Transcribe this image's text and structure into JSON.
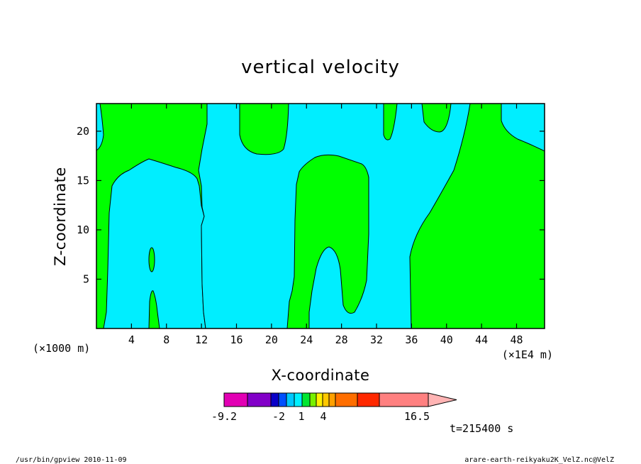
{
  "chart_data": {
    "type": "contour",
    "title": "vertical velocity",
    "xlabel": "X-coordinate",
    "ylabel": "Z-coordinate",
    "x_unit_left": "(×1000 m)",
    "x_unit_right": "(×1E4 m)",
    "xlim": [
      0,
      51.2
    ],
    "ylim": [
      0,
      22.8
    ],
    "x_ticks": [
      4,
      8,
      12,
      16,
      20,
      24,
      28,
      32,
      36,
      40,
      44,
      48
    ],
    "y_ticks": [
      5,
      10,
      15,
      20
    ],
    "colors": {
      "positive": "#00ff00",
      "negative": "#00eeff"
    },
    "colorbar": {
      "labels": [
        "-9.2",
        "-2",
        "1",
        "4",
        "16.5"
      ],
      "colors": [
        "#e200b4",
        "#8200c8",
        "#0a00c8",
        "#0050ff",
        "#00c8ff",
        "#00f0ff",
        "#00e632",
        "#78f000",
        "#fff000",
        "#ffc800",
        "#ffa000",
        "#ff6e00",
        "#ff2800",
        "#ff8080",
        "#ffb4b4"
      ]
    },
    "time_label": "t=215400 s"
  },
  "footer": {
    "left": "/usr/bin/gpview   2010-11-09",
    "right": "arare-earth-reikyaku2K_VelZ.nc@VelZ"
  }
}
